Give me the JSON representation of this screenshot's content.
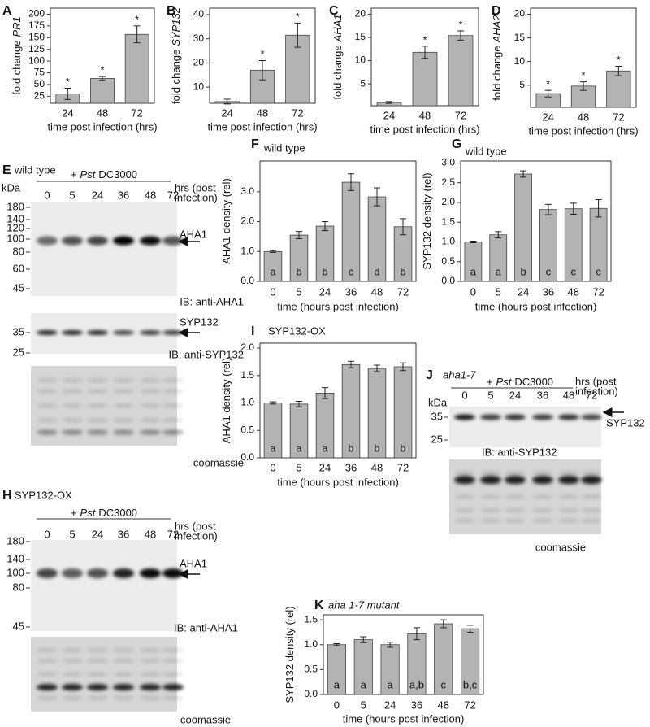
{
  "chart_data": [
    {
      "panel": "A",
      "type": "bar",
      "ylabel": "fold change",
      "ylabel_gene": "PR1",
      "xlabel": "time post infection (hrs)",
      "categories": [
        "24",
        "48",
        "72"
      ],
      "values": [
        30,
        63,
        157
      ],
      "errors": [
        12,
        4,
        18
      ],
      "significance": [
        "*",
        "*",
        "*"
      ],
      "color": "#b3b3b3",
      "ylim": [
        10,
        213
      ],
      "yticks": [
        25,
        50,
        75,
        100,
        125,
        150,
        175,
        200
      ]
    },
    {
      "panel": "B",
      "type": "bar",
      "ylabel": "fold change",
      "ylabel_gene": "SYP132",
      "xlabel": "time post infection (hrs)",
      "categories": [
        "24",
        "48",
        "72"
      ],
      "values": [
        4,
        17,
        31.5
      ],
      "errors": [
        1,
        4,
        5
      ],
      "significance": [
        null,
        "*",
        "*"
      ],
      "color": "#b3b3b3",
      "ylim": [
        3.3,
        42.7
      ],
      "yticks": [
        10,
        20,
        30,
        40
      ]
    },
    {
      "panel": "C",
      "type": "bar",
      "ylabel": "fold change",
      "ylabel_gene": "AHA1",
      "xlabel": "time post infection (hrs)",
      "categories": [
        "24",
        "48",
        "72"
      ],
      "values": [
        1,
        11.8,
        15.4
      ],
      "errors": [
        0.2,
        1.3,
        1
      ],
      "significance": [
        null,
        "*",
        "*"
      ],
      "color": "#b3b3b3",
      "ylim": [
        0.3,
        21.3
      ],
      "yticks": [
        5,
        10,
        15,
        20
      ]
    },
    {
      "panel": "D",
      "type": "bar",
      "ylabel": "fold change",
      "ylabel_gene": "AHA2",
      "xlabel": "time post infection (hrs)",
      "categories": [
        "24",
        "48",
        "72"
      ],
      "values": [
        3.2,
        4.8,
        8
      ],
      "errors": [
        0.7,
        0.9,
        1
      ],
      "significance": [
        "*",
        "*",
        "*"
      ],
      "color": "#b3b3b3",
      "ylim": [
        0.3,
        21.3
      ],
      "yticks": [
        5,
        10,
        15,
        20
      ]
    },
    {
      "panel": "F",
      "type": "bar",
      "subtitle": "wild type",
      "ylabel": "AHA1 density (rel)",
      "xlabel": "time (hours post infection)",
      "categories": [
        "0",
        "5",
        "24",
        "36",
        "48",
        "72"
      ],
      "values": [
        1.0,
        1.55,
        1.85,
        3.32,
        2.83,
        1.83
      ],
      "errors": [
        0.03,
        0.12,
        0.15,
        0.28,
        0.3,
        0.27
      ],
      "letters": [
        "a",
        "b",
        "b",
        "c",
        "d",
        "b"
      ],
      "color": "#b3b3b3",
      "ylim": [
        0,
        4.03
      ],
      "yticks": [
        {
          "value": 0,
          "label": "0.0"
        },
        {
          "value": 1,
          "label": "1.0"
        },
        {
          "value": 2,
          "label": "2.0"
        },
        {
          "value": 3,
          "label": "3.0"
        }
      ]
    },
    {
      "panel": "G",
      "type": "bar",
      "subtitle": "wild type",
      "ylabel": "SYP132 density (rel)",
      "xlabel": "time (hours post infection)",
      "categories": [
        "0",
        "5",
        "24",
        "36",
        "48",
        "72"
      ],
      "values": [
        1.0,
        1.18,
        2.72,
        1.82,
        1.84,
        1.85
      ],
      "errors": [
        0.02,
        0.08,
        0.08,
        0.13,
        0.14,
        0.22
      ],
      "letters": [
        "a",
        "a",
        "b",
        "c",
        "c",
        "c"
      ],
      "color": "#b3b3b3",
      "ylim": [
        0,
        3.05
      ],
      "yticks": [
        {
          "value": 0,
          "label": "0.0"
        },
        0.5,
        {
          "value": 1,
          "label": "1.0"
        },
        1.5,
        {
          "value": 2,
          "label": "2.0"
        },
        2.5,
        {
          "value": 3,
          "label": "3.0"
        }
      ]
    },
    {
      "panel": "I",
      "type": "bar",
      "subtitle": "SYP132-OX",
      "ylabel": "AHA1 density (rel)",
      "xlabel": "time (hours post infection)",
      "categories": [
        "0",
        "5",
        "24",
        "36",
        "48",
        "72"
      ],
      "values": [
        1.0,
        0.98,
        1.18,
        1.7,
        1.63,
        1.66
      ],
      "errors": [
        0.02,
        0.05,
        0.1,
        0.06,
        0.06,
        0.07
      ],
      "letters": [
        "a",
        "a",
        "a",
        "b",
        "b",
        "b"
      ],
      "color": "#b3b3b3",
      "ylim": [
        0,
        2.09
      ],
      "yticks": [
        {
          "value": 0,
          "label": "0.0"
        },
        0.5,
        {
          "value": 1,
          "label": "1.0"
        },
        1.5,
        {
          "value": 2,
          "label": "2.0"
        }
      ]
    },
    {
      "panel": "K",
      "type": "bar",
      "subtitle": "aha 1-7 mutant",
      "ylabel": "SYP132 density (rel)",
      "xlabel": "time (hours post infection)",
      "categories": [
        "0",
        "5",
        "24",
        "36",
        "48",
        "72"
      ],
      "values": [
        1.0,
        1.1,
        1.0,
        1.22,
        1.42,
        1.32
      ],
      "errors": [
        0.02,
        0.06,
        0.05,
        0.12,
        0.08,
        0.07
      ],
      "letters": [
        "a",
        "a",
        "a",
        "a,b",
        "c",
        "b,c"
      ],
      "color": "#b3b3b3",
      "ylim": [
        0,
        1.6
      ],
      "yticks": [
        {
          "value": 0,
          "label": "0.0"
        },
        0.5,
        {
          "value": 1,
          "label": "1.0"
        },
        1.5
      ]
    }
  ],
  "blots": [
    {
      "panel": "E",
      "genotype": "wild type",
      "treatment": [
        "+",
        "Pst",
        "DC3000"
      ],
      "time_unit": [
        "hrs (post",
        "infection)"
      ],
      "kda_unit": "kDa",
      "lanes": [
        "0",
        "5",
        "24",
        "36",
        "48",
        "72"
      ],
      "membranes": [
        {
          "markers": [
            180,
            140,
            120,
            100,
            80,
            60,
            45
          ],
          "band": "AHA1",
          "caption": "IB: anti-AHA1"
        },
        {
          "markers": [
            35,
            25
          ],
          "band": "SYP132",
          "caption": "IB: anti-SYP132"
        },
        {
          "caption": "coomassie"
        }
      ]
    },
    {
      "panel": "H",
      "genotype": "SYP132-OX",
      "treatment": [
        "+",
        "Pst",
        "DC3000"
      ],
      "time_unit": [
        "hrs (post",
        "infection)"
      ],
      "lanes": [
        "0",
        "5",
        "24",
        "36",
        "48",
        "72"
      ],
      "membranes": [
        {
          "markers": [
            180,
            140,
            100,
            80,
            45
          ],
          "band": "AHA1",
          "caption": "IB: anti-AHA1"
        },
        {
          "caption": "coomassie"
        }
      ]
    },
    {
      "panel": "J",
      "genotype": "aha1-7",
      "treatment": [
        "+",
        "Pst",
        "DC3000"
      ],
      "time_unit": [
        "hrs (post",
        "infection)"
      ],
      "kda_unit": "kDa",
      "lanes": [
        "0",
        "5",
        "24",
        "36",
        "48",
        "72"
      ],
      "membranes": [
        {
          "markers": [
            35,
            25
          ],
          "band": "SYP132",
          "caption": "IB: anti-SYP132"
        },
        {
          "caption": "coomassie"
        }
      ]
    }
  ]
}
